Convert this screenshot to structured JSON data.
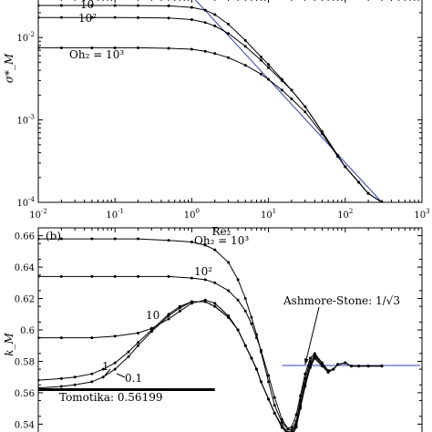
{
  "chart_data": [
    {
      "type": "line",
      "panel": "a",
      "xscale": "log",
      "yscale": "log",
      "xlim": [
        0.01,
        1000
      ],
      "ylim": [
        0.0001,
        0.03
      ],
      "xlabel": "Re₂",
      "ylabel": "σ*_M",
      "grid": false,
      "xticks": [
        {
          "v": 0.01,
          "base": "10",
          "exp": "-2"
        },
        {
          "v": 0.1,
          "base": "10",
          "exp": "-1"
        },
        {
          "v": 1,
          "base": "10",
          "exp": "0"
        },
        {
          "v": 10,
          "base": "10",
          "exp": "1"
        },
        {
          "v": 100,
          "base": "10",
          "exp": "2"
        },
        {
          "v": 1000,
          "base": "10",
          "exp": "3"
        }
      ],
      "yticks": [
        {
          "v": 0.0001,
          "base": "10",
          "exp": "-4"
        },
        {
          "v": 0.001,
          "base": "10",
          "exp": "-3"
        },
        {
          "v": 0.01,
          "base": "10",
          "exp": "-2"
        }
      ],
      "series": [
        {
          "label": "10",
          "plateau": 0.0245,
          "x": [
            0.01,
            0.02,
            0.05,
            0.1,
            0.2,
            0.5,
            1,
            1.5,
            2,
            3,
            5,
            8,
            10,
            15,
            20,
            30,
            50,
            80,
            100,
            150,
            200,
            300
          ],
          "y": [
            0.0245,
            0.0245,
            0.0245,
            0.0245,
            0.0244,
            0.0242,
            0.0232,
            0.0215,
            0.019,
            0.0145,
            0.0092,
            0.0058,
            0.0047,
            0.0031,
            0.0023,
            0.00145,
            0.00072,
            0.00037,
            0.00027,
            0.000175,
            0.000128,
            0.0001
          ]
        },
        {
          "label": "10²",
          "plateau": 0.0175,
          "x": [
            0.01,
            0.02,
            0.05,
            0.1,
            0.2,
            0.5,
            1,
            1.5,
            2,
            3,
            5,
            8,
            10,
            15,
            20,
            30,
            50,
            80,
            100,
            150,
            200,
            300
          ],
          "y": [
            0.0175,
            0.0175,
            0.0175,
            0.0175,
            0.0174,
            0.0172,
            0.0165,
            0.0152,
            0.0138,
            0.0112,
            0.0078,
            0.0053,
            0.0043,
            0.003,
            0.0023,
            0.00145,
            0.00072,
            0.00037,
            0.00027,
            0.000175,
            0.000128,
            0.0001
          ]
        },
        {
          "label": "Oh₂ = 10³",
          "plateau": 0.0075,
          "x": [
            0.01,
            0.02,
            0.05,
            0.1,
            0.2,
            0.5,
            1,
            1.5,
            2,
            3,
            5,
            8,
            10,
            15,
            20,
            30,
            50,
            80,
            100,
            150,
            200,
            300
          ],
          "y": [
            0.0075,
            0.0075,
            0.0075,
            0.0075,
            0.0075,
            0.0074,
            0.0072,
            0.0068,
            0.0064,
            0.0057,
            0.0046,
            0.0036,
            0.0031,
            0.0023,
            0.0018,
            0.00125,
            0.00068,
            0.00036,
            0.00027,
            0.000175,
            0.000128,
            0.0001
          ]
        }
      ],
      "reference_line": {
        "color": "#2b3fb0",
        "x": [
          1,
          300
        ],
        "y": [
          0.032,
          0.0001
        ]
      }
    },
    {
      "type": "line",
      "panel": "b",
      "panel_label": "(b)",
      "xscale": "log",
      "xlim": [
        0.01,
        1000
      ],
      "ylim": [
        0.535,
        0.665
      ],
      "ylabel": "k_M",
      "grid": false,
      "yticks": [
        0.54,
        0.56,
        0.58,
        0.6,
        0.62,
        0.64,
        0.66
      ],
      "series": [
        {
          "label": "Oh₂ = 10³",
          "x": [
            0.01,
            0.02,
            0.05,
            0.1,
            0.2,
            0.5,
            1,
            1.5,
            2,
            3,
            4,
            5,
            6,
            7,
            8,
            10,
            12,
            15,
            18,
            20,
            23,
            26,
            30,
            35,
            40,
            50,
            60,
            70,
            80,
            100,
            120,
            150,
            200,
            300
          ],
          "y": [
            0.658,
            0.658,
            0.658,
            0.658,
            0.658,
            0.657,
            0.656,
            0.654,
            0.651,
            0.643,
            0.632,
            0.62,
            0.608,
            0.597,
            0.586,
            0.567,
            0.552,
            0.541,
            0.537,
            0.538,
            0.546,
            0.558,
            0.572,
            0.582,
            0.585,
            0.579,
            0.574,
            0.575,
            0.578,
            0.579,
            0.577,
            0.577,
            0.577,
            0.577
          ]
        },
        {
          "label": "10²",
          "x": [
            0.01,
            0.02,
            0.05,
            0.1,
            0.2,
            0.5,
            1,
            1.5,
            2,
            3,
            4,
            5,
            6,
            7,
            8,
            10,
            12,
            15,
            18,
            20,
            23,
            26,
            30,
            35,
            40,
            50,
            60,
            70,
            80,
            100,
            120,
            150,
            200,
            300
          ],
          "y": [
            0.634,
            0.634,
            0.634,
            0.634,
            0.634,
            0.634,
            0.633,
            0.632,
            0.63,
            0.625,
            0.619,
            0.612,
            0.604,
            0.595,
            0.587,
            0.571,
            0.557,
            0.543,
            0.537,
            0.536,
            0.542,
            0.555,
            0.569,
            0.58,
            0.584,
            0.579,
            0.574,
            0.575,
            0.578,
            0.579,
            0.577,
            0.577,
            0.577,
            0.577
          ]
        },
        {
          "label": "10",
          "x": [
            0.01,
            0.02,
            0.05,
            0.1,
            0.2,
            0.3,
            0.5,
            0.7,
            1,
            1.5,
            2,
            3,
            4,
            5,
            6,
            7,
            8,
            10,
            12,
            15,
            18,
            20,
            23,
            26,
            30,
            35,
            40,
            50,
            60,
            70,
            80,
            100,
            120,
            150,
            200,
            300
          ],
          "y": [
            0.595,
            0.595,
            0.595,
            0.596,
            0.598,
            0.601,
            0.607,
            0.612,
            0.617,
            0.619,
            0.617,
            0.609,
            0.6,
            0.59,
            0.582,
            0.575,
            0.567,
            0.556,
            0.547,
            0.539,
            0.535,
            0.535,
            0.54,
            0.552,
            0.566,
            0.578,
            0.583,
            0.578,
            0.574,
            0.575,
            0.578,
            0.579,
            0.577,
            0.577,
            0.577,
            0.577
          ]
        },
        {
          "label": "1",
          "x": [
            0.01,
            0.02,
            0.03,
            0.05,
            0.07,
            0.1,
            0.15,
            0.2,
            0.3,
            0.5,
            0.7,
            1,
            1.5,
            2,
            3,
            4,
            5,
            6,
            7,
            8,
            10,
            12,
            15,
            18,
            20,
            23,
            26,
            30,
            35,
            40,
            50,
            60,
            70,
            80,
            100,
            120,
            150,
            200,
            300
          ],
          "y": [
            0.568,
            0.569,
            0.57,
            0.572,
            0.575,
            0.579,
            0.586,
            0.592,
            0.6,
            0.61,
            0.615,
            0.618,
            0.618,
            0.615,
            0.608,
            0.6,
            0.59,
            0.582,
            0.575,
            0.567,
            0.556,
            0.547,
            0.538,
            0.534,
            0.533,
            0.539,
            0.551,
            0.565,
            0.577,
            0.582,
            0.577,
            0.573,
            0.575,
            0.578,
            0.579,
            0.577,
            0.577,
            0.577,
            0.577
          ]
        },
        {
          "label": "0.1",
          "x": [
            0.01,
            0.02,
            0.03,
            0.05,
            0.07,
            0.1,
            0.15,
            0.2,
            0.3,
            0.5,
            0.7,
            1,
            1.5,
            2,
            3,
            4,
            5,
            6,
            7,
            8,
            10,
            12,
            15,
            18,
            20,
            23,
            26,
            30,
            35,
            40,
            50,
            60,
            70,
            80,
            100,
            120,
            150,
            200,
            300
          ],
          "y": [
            0.563,
            0.564,
            0.565,
            0.567,
            0.57,
            0.575,
            0.583,
            0.59,
            0.599,
            0.609,
            0.614,
            0.618,
            0.618,
            0.615,
            0.608,
            0.6,
            0.59,
            0.582,
            0.575,
            0.567,
            0.556,
            0.547,
            0.538,
            0.533,
            0.532,
            0.538,
            0.55,
            0.564,
            0.576,
            0.582,
            0.577,
            0.573,
            0.575,
            0.578,
            0.579,
            0.577,
            0.577,
            0.577,
            0.577
          ]
        }
      ],
      "reference_lines": [
        {
          "label": "Ashmore-Stone: 1/√3",
          "y": 0.57735,
          "x": [
            15,
            1000
          ],
          "color": "#2b3fb0"
        },
        {
          "label": "Tomotika: 0.56199",
          "y": 0.56199,
          "x": [
            0.01,
            2
          ],
          "color": "#000000"
        }
      ]
    }
  ]
}
